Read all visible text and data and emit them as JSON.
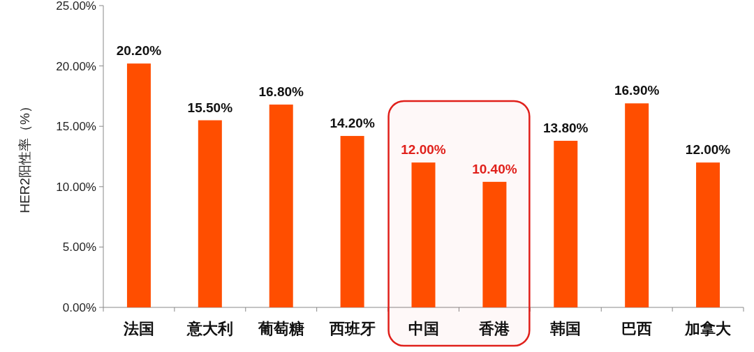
{
  "chart_data": {
    "type": "bar",
    "ylabel": "HER2阳性率（%）",
    "categories": [
      "法国",
      "意大利",
      "葡萄糖",
      "西班牙",
      "中国",
      "香港",
      "韩国",
      "巴西",
      "加拿大"
    ],
    "values": [
      20.2,
      15.5,
      16.8,
      14.2,
      12.0,
      10.4,
      13.8,
      16.9,
      12.0
    ],
    "value_labels": [
      "20.20%",
      "15.50%",
      "16.80%",
      "14.20%",
      "12.00%",
      "10.40%",
      "13.80%",
      "16.90%",
      "12.00%"
    ],
    "color": "#ff4e00",
    "ylim": [
      0,
      25
    ],
    "yticks": [
      {
        "value": 0,
        "label": "0.00%"
      },
      {
        "value": 5,
        "label": "5.00%"
      },
      {
        "value": 10,
        "label": "10.00%"
      },
      {
        "value": 15,
        "label": "15.00%"
      },
      {
        "value": 20,
        "label": "20.00%"
      },
      {
        "value": 25,
        "label": "25.00%"
      }
    ],
    "bands": [
      {
        "axis": "x",
        "from": "中国",
        "to": "香港",
        "color": "#e0201b"
      }
    ],
    "grid": false
  }
}
